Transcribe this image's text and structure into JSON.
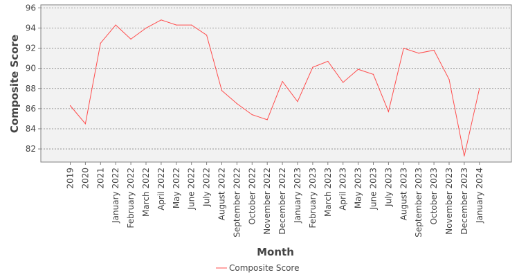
{
  "colors": {
    "series": "#ff4c4c",
    "plot_background": "#f2f2f2",
    "gridline": "#808080",
    "axis": "#808080",
    "text": "#444444"
  },
  "chart_data": {
    "type": "line",
    "title": "",
    "xlabel": "Month",
    "ylabel": "Composite Score",
    "ylim": [
      80.7,
      96.3
    ],
    "yticks": [
      82,
      84,
      86,
      88,
      90,
      92,
      94,
      96
    ],
    "grid": "horizontal dashed",
    "legend": "bottom-center",
    "categories": [
      "2019",
      "2020",
      "2021",
      "January 2022",
      "February 2022",
      "March 2022",
      "April 2022",
      "May 2022",
      "June 2022",
      "July 2022",
      "August 2022",
      "September 2022",
      "October 2022",
      "November 2022",
      "December 2022",
      "January 2023",
      "February 2023",
      "March 2023",
      "April 2023",
      "May 2023",
      "June 2023",
      "July 2023",
      "August 2023",
      "September 2023",
      "October 2023",
      "November 2023",
      "December 2023",
      "January 2024"
    ],
    "series": [
      {
        "name": "Composite Score",
        "values": [
          86.3,
          84.5,
          92.5,
          94.3,
          92.9,
          94.0,
          94.8,
          94.3,
          94.3,
          93.3,
          87.8,
          86.5,
          85.4,
          84.9,
          88.7,
          86.7,
          90.1,
          90.7,
          88.6,
          89.9,
          89.4,
          85.7,
          92.0,
          91.5,
          91.8,
          88.9,
          81.3,
          88.0
        ]
      }
    ]
  }
}
